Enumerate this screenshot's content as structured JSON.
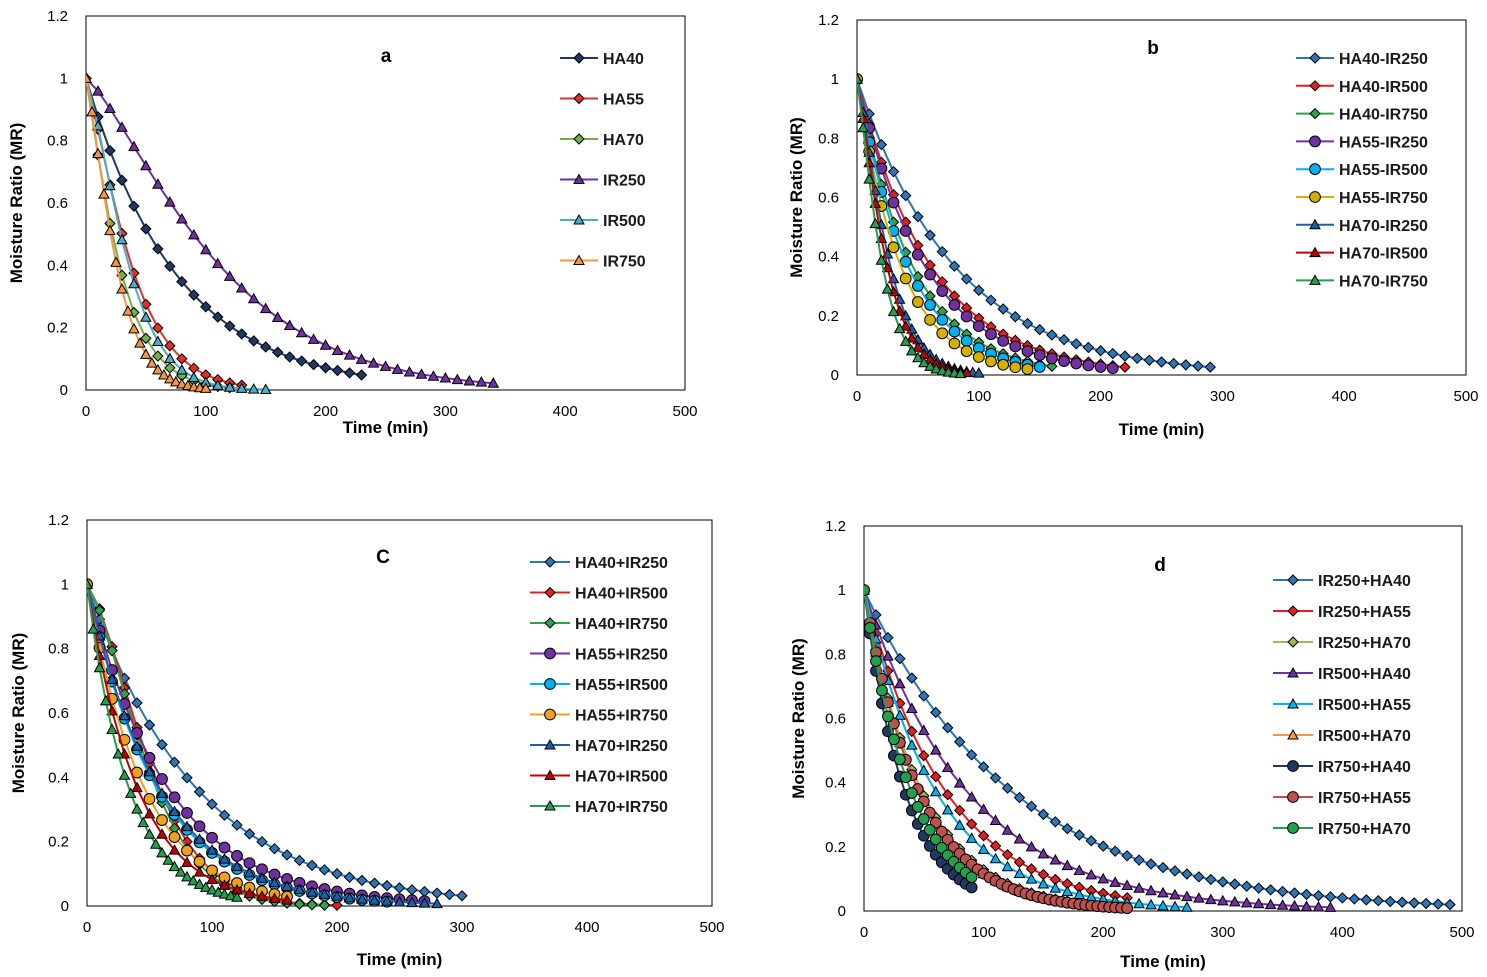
{
  "chart_data": [
    {
      "type": "line",
      "title": "a",
      "xlabel": "Time (min)",
      "ylabel": "Moisture Ratio (MR)",
      "xlim": [
        0,
        500
      ],
      "ylim": [
        0,
        1.2
      ],
      "xticks": [
        "0",
        "100",
        "200",
        "300",
        "400",
        "500"
      ],
      "yticks": [
        "0",
        "0.2",
        "0.4",
        "0.6",
        "0.8",
        "1",
        "1.2"
      ],
      "series": [
        {
          "name": "HA40",
          "color": "#1f3864",
          "marker": "diamond",
          "k": 0.0132,
          "n": 1.0,
          "tEnd": 230,
          "step": 10
        },
        {
          "name": "HA55",
          "color": "#e0302a",
          "marker": "diamond",
          "k": 0.0105,
          "n": 1.23,
          "tEnd": 130,
          "step": 10
        },
        {
          "name": "HA70",
          "color": "#70b04c",
          "marker": "diamond",
          "k": 0.02,
          "n": 1.15,
          "tEnd": 120,
          "step": 10
        },
        {
          "name": "IR250",
          "color": "#7030a0",
          "marker": "triangle",
          "k": 0.0022,
          "n": 1.28,
          "tEnd": 340,
          "step": 10
        },
        {
          "name": "IR500",
          "color": "#4bacc6",
          "marker": "triangle",
          "k": 0.0074,
          "n": 1.35,
          "tEnd": 150,
          "step": 10
        },
        {
          "name": "IR750",
          "color": "#f79646",
          "marker": "triangle",
          "k": 0.0145,
          "n": 1.28,
          "tEnd": 100,
          "step": 5
        }
      ]
    },
    {
      "type": "line",
      "title": "b",
      "xlabel": "Time (min)",
      "ylabel": "Moisture Ratio (MR)",
      "xlim": [
        0,
        500
      ],
      "ylim": [
        0,
        1.2
      ],
      "xticks": [
        "0",
        "100",
        "200",
        "300",
        "400",
        "500"
      ],
      "yticks": [
        "0",
        "0.2",
        "0.4",
        "0.6",
        "0.8",
        "1",
        "1.2"
      ],
      "series": [
        {
          "name": "HA40-IR250",
          "color": "#2e75b6",
          "marker": "diamond",
          "k": 0.0125,
          "n": 1.0,
          "tEnd": 290,
          "step": 10
        },
        {
          "name": "HA40-IR500",
          "color": "#e02020",
          "marker": "diamond",
          "k": 0.0165,
          "n": 1.0,
          "tEnd": 220,
          "step": 10
        },
        {
          "name": "HA40-IR750",
          "color": "#2ea34b",
          "marker": "diamond",
          "k": 0.022,
          "n": 1.0,
          "tEnd": 160,
          "step": 10
        },
        {
          "name": "HA55-IR250",
          "color": "#7030a0",
          "marker": "circle",
          "k": 0.018,
          "n": 1.0,
          "tEnd": 210,
          "step": 10
        },
        {
          "name": "HA55-IR500",
          "color": "#00b0f0",
          "marker": "circle",
          "k": 0.024,
          "n": 1.0,
          "tEnd": 150,
          "step": 10
        },
        {
          "name": "HA55-IR750",
          "color": "#d4b000",
          "marker": "circle",
          "k": 0.028,
          "n": 1.0,
          "tEnd": 140,
          "step": 10
        },
        {
          "name": "HA70-IR250",
          "color": "#1f5fa8",
          "marker": "triangle",
          "k": 0.016,
          "n": 1.25,
          "tEnd": 100,
          "step": 5
        },
        {
          "name": "HA70-IR500",
          "color": "#c00000",
          "marker": "triangle",
          "k": 0.02,
          "n": 1.22,
          "tEnd": 90,
          "step": 5
        },
        {
          "name": "HA70-IR750",
          "color": "#22a04b",
          "marker": "triangle",
          "k": 0.026,
          "n": 1.2,
          "tEnd": 85,
          "step": 5
        }
      ]
    },
    {
      "type": "line",
      "title": "C",
      "xlabel": "Time (min)",
      "ylabel": "Moisture Ratio (MR)",
      "xlim": [
        0,
        500
      ],
      "ylim": [
        0,
        1.2
      ],
      "xticks": [
        "0",
        "100",
        "200",
        "300",
        "400",
        "500"
      ],
      "yticks": [
        "0",
        "0.2",
        "0.4",
        "0.6",
        "0.8",
        "1",
        "1.2"
      ],
      "series": [
        {
          "name": "HA40+IR250",
          "color": "#2e75b6",
          "marker": "diamond",
          "k": 0.0115,
          "n": 1.0,
          "tEnd": 300,
          "step": 10
        },
        {
          "name": "HA40+IR500",
          "color": "#e02020",
          "marker": "diamond",
          "k": 0.0028,
          "n": 1.45,
          "tEnd": 200,
          "step": 10
        },
        {
          "name": "HA40+IR750",
          "color": "#2ea34b",
          "marker": "diamond",
          "k": 0.003,
          "n": 1.45,
          "tEnd": 190,
          "step": 10
        },
        {
          "name": "HA55+IR250",
          "color": "#7030a0",
          "marker": "circle",
          "k": 0.0155,
          "n": 1.0,
          "tEnd": 270,
          "step": 10
        },
        {
          "name": "HA55+IR500",
          "color": "#00b0f0",
          "marker": "circle",
          "k": 0.018,
          "n": 1.0,
          "tEnd": 240,
          "step": 10
        },
        {
          "name": "HA55+IR750",
          "color": "#f0a020",
          "marker": "circle",
          "k": 0.022,
          "n": 1.0,
          "tEnd": 160,
          "step": 10
        },
        {
          "name": "HA70+IR250",
          "color": "#1f5fa8",
          "marker": "triangle",
          "k": 0.0175,
          "n": 1.0,
          "tEnd": 280,
          "step": 10
        },
        {
          "name": "HA70+IR500",
          "color": "#c00000",
          "marker": "triangle",
          "k": 0.025,
          "n": 1.0,
          "tEnd": 160,
          "step": 10
        },
        {
          "name": "HA70+IR750",
          "color": "#22a04b",
          "marker": "triangle",
          "k": 0.03,
          "n": 1.0,
          "tEnd": 120,
          "step": 5
        }
      ]
    },
    {
      "type": "line",
      "title": "d",
      "xlabel": "Time (min)",
      "ylabel": "Moisture Ratio (MR)",
      "xlim": [
        0,
        500
      ],
      "ylim": [
        0,
        1.2
      ],
      "xticks": [
        "0",
        "100",
        "200",
        "300",
        "400",
        "500"
      ],
      "yticks": [
        "0",
        "0.2",
        "0.4",
        "0.6",
        "0.8",
        "1",
        "1.2"
      ],
      "series": [
        {
          "name": "IR250+HA40",
          "color": "#2e75b6",
          "marker": "diamond",
          "k": 0.008,
          "n": 1.0,
          "tEnd": 490,
          "step": 10
        },
        {
          "name": "IR250+HA55",
          "color": "#e02020",
          "marker": "diamond",
          "k": 0.0145,
          "n": 1.0,
          "tEnd": 220,
          "step": 10
        },
        {
          "name": "IR250+HA70",
          "color": "#9bbb59",
          "marker": "diamond",
          "k": 0.0205,
          "n": 1.0,
          "tEnd": 170,
          "step": 10
        },
        {
          "name": "IR500+HA40",
          "color": "#7030a0",
          "marker": "triangle",
          "k": 0.0115,
          "n": 1.0,
          "tEnd": 390,
          "step": 10
        },
        {
          "name": "IR500+HA55",
          "color": "#00b0f0",
          "marker": "triangle",
          "k": 0.0165,
          "n": 1.0,
          "tEnd": 270,
          "step": 10
        },
        {
          "name": "IR500+HA70",
          "color": "#f79646",
          "marker": "triangle",
          "k": 0.0215,
          "n": 1.0,
          "tEnd": 180,
          "step": 10
        },
        {
          "name": "IR750+HA40",
          "color": "#1f3864",
          "marker": "circle",
          "k": 0.029,
          "n": 1.0,
          "tEnd": 90,
          "step": 5
        },
        {
          "name": "IR750+HA55",
          "color": "#c0504d",
          "marker": "circle",
          "k": 0.0215,
          "n": 1.0,
          "tEnd": 220,
          "step": 5
        },
        {
          "name": "IR750+HA70",
          "color": "#22a04b",
          "marker": "circle",
          "k": 0.025,
          "n": 1.0,
          "tEnd": 90,
          "step": 5
        }
      ]
    }
  ]
}
